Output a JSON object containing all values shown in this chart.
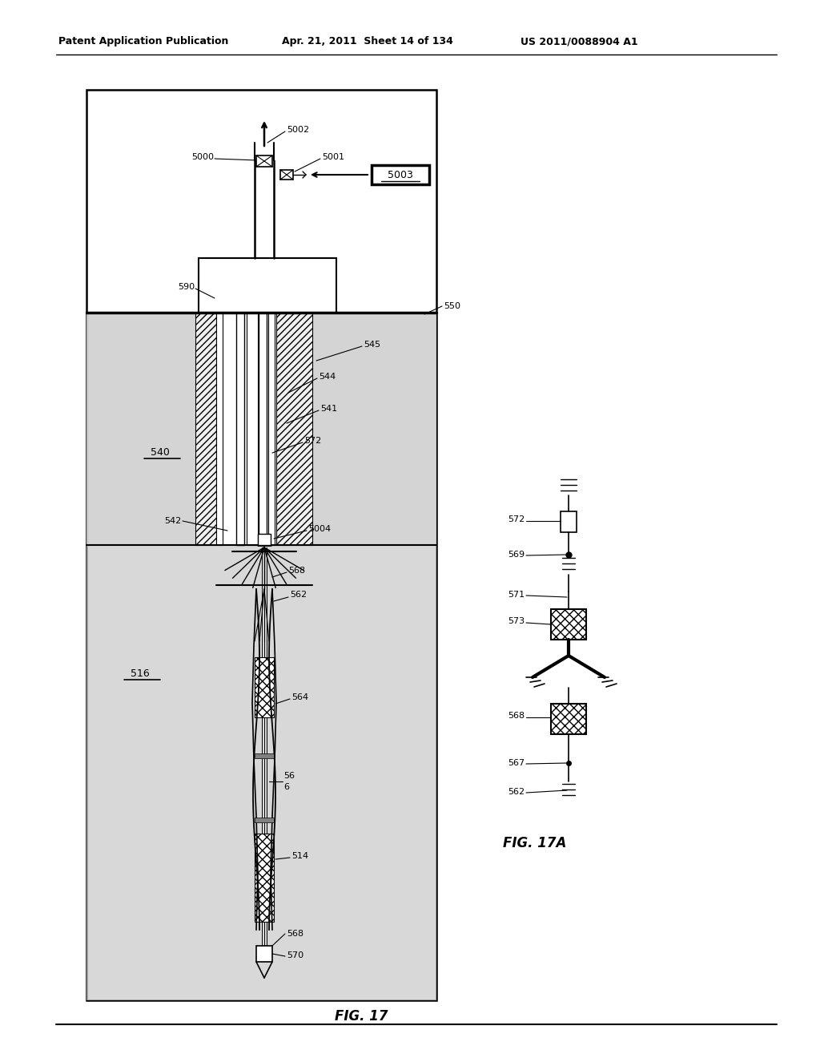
{
  "header_left": "Patent Application Publication",
  "header_mid": "Apr. 21, 2011  Sheet 14 of 134",
  "header_right": "US 2011/0088904 A1",
  "fig17_label": "FIG. 17",
  "fig17a_label": "FIG. 17A",
  "bg": "#ffffff"
}
